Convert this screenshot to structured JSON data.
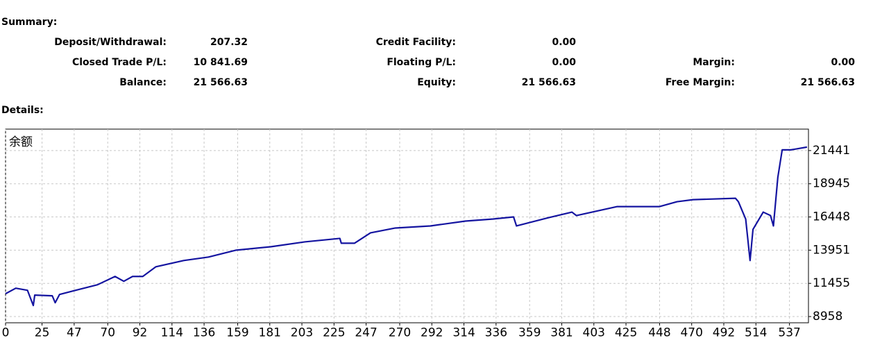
{
  "summary": {
    "title": "Summary:",
    "rows": [
      [
        {
          "label": "Deposit/Withdrawal:",
          "value": "207.32"
        },
        {
          "label": "Credit Facility:",
          "value": "0.00"
        }
      ],
      [
        {
          "label": "Closed Trade P/L:",
          "value": "10 841.69"
        },
        {
          "label": "Floating P/L:",
          "value": "0.00"
        },
        {
          "label": "Margin:",
          "value": "0.00"
        }
      ],
      [
        {
          "label": "Balance:",
          "value": "21 566.63"
        },
        {
          "label": "Equity:",
          "value": "21 566.63"
        },
        {
          "label": "Free Margin:",
          "value": "21 566.63"
        }
      ]
    ]
  },
  "details": {
    "title": "Details:"
  },
  "chart_data": {
    "type": "line",
    "title": "余额",
    "x": [
      0,
      7,
      15,
      19,
      20,
      32,
      34,
      37,
      48,
      63,
      75,
      81,
      87,
      94,
      103,
      122,
      139,
      158,
      182,
      205,
      229,
      230,
      239,
      250,
      267,
      291,
      315,
      334,
      348,
      350,
      372,
      388,
      391,
      419,
      448,
      460,
      471,
      500,
      502,
      507,
      510,
      512,
      519,
      524,
      526,
      529,
      532,
      538,
      549
    ],
    "series": [
      {
        "name": "Balance",
        "color": "#1414a0",
        "values": [
          10675,
          11091,
          10935,
          9790,
          10571,
          10519,
          9998,
          10623,
          10935,
          11351,
          11975,
          11611,
          11975,
          11975,
          12703,
          13172,
          13432,
          13952,
          14212,
          14576,
          14836,
          14472,
          14472,
          15252,
          15617,
          15773,
          16137,
          16293,
          16449,
          15773,
          16397,
          16813,
          16553,
          17229,
          17229,
          17594,
          17750,
          17854,
          17594,
          16293,
          13172,
          15512,
          16813,
          16553,
          15773,
          19414,
          21495,
          21495,
          21703
        ]
      }
    ],
    "xlim": [
      0,
      550
    ],
    "xticks": [
      0,
      25,
      47,
      70,
      92,
      114,
      136,
      159,
      181,
      203,
      225,
      247,
      270,
      292,
      314,
      336,
      359,
      381,
      403,
      425,
      448,
      470,
      492,
      514,
      537
    ],
    "ylim": [
      8490,
      23054
    ],
    "yticks": [
      8958,
      11455,
      13951,
      16448,
      18945,
      21441
    ],
    "grid": true
  }
}
